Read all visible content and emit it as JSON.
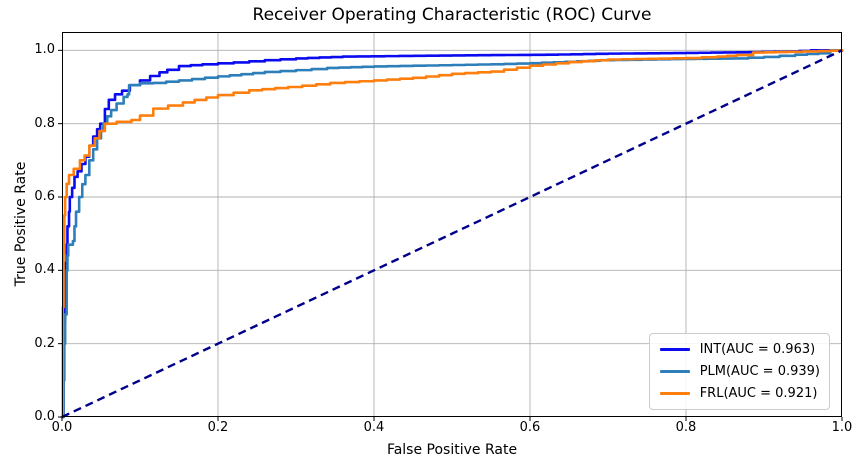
{
  "chart_data": {
    "type": "line",
    "title": "Receiver Operating Characteristic (ROC) Curve",
    "xlabel": "False Positive Rate",
    "ylabel": "True Positive Rate",
    "xlim": [
      0,
      1.0
    ],
    "ylim": [
      0,
      1.05
    ],
    "grid": true,
    "legend_position": "lower-right",
    "x_ticks": [
      {
        "value": 0.0,
        "label": "0.0"
      },
      {
        "value": 0.2,
        "label": "0.2"
      },
      {
        "value": 0.4,
        "label": "0.4"
      },
      {
        "value": 0.6,
        "label": "0.6"
      },
      {
        "value": 0.8,
        "label": "0.8"
      },
      {
        "value": 1.0,
        "label": "1.0"
      }
    ],
    "y_ticks": [
      {
        "value": 0.0,
        "label": "0.0"
      },
      {
        "value": 0.2,
        "label": "0.2"
      },
      {
        "value": 0.4,
        "label": "0.4"
      },
      {
        "value": 0.6,
        "label": "0.6"
      },
      {
        "value": 0.8,
        "label": "0.8"
      },
      {
        "value": 1.0,
        "label": "1.0"
      }
    ],
    "series": [
      {
        "name": "INT",
        "auc": 0.963,
        "label": "INT(AUC = 0.963)",
        "color": "#0b0bf0",
        "points": [
          [
            0.0,
            0.0
          ],
          [
            0.002,
            0.13
          ],
          [
            0.002,
            0.2
          ],
          [
            0.003,
            0.26
          ],
          [
            0.004,
            0.33
          ],
          [
            0.004,
            0.42
          ],
          [
            0.006,
            0.47
          ],
          [
            0.007,
            0.52
          ],
          [
            0.009,
            0.56
          ],
          [
            0.01,
            0.6
          ],
          [
            0.013,
            0.625
          ],
          [
            0.016,
            0.655
          ],
          [
            0.02,
            0.67
          ],
          [
            0.025,
            0.69
          ],
          [
            0.03,
            0.71
          ],
          [
            0.035,
            0.74
          ],
          [
            0.04,
            0.765
          ],
          [
            0.045,
            0.785
          ],
          [
            0.049,
            0.8
          ],
          [
            0.055,
            0.84
          ],
          [
            0.06,
            0.865
          ],
          [
            0.068,
            0.88
          ],
          [
            0.077,
            0.89
          ],
          [
            0.087,
            0.905
          ],
          [
            0.1,
            0.918
          ],
          [
            0.113,
            0.93
          ],
          [
            0.125,
            0.94
          ],
          [
            0.135,
            0.947
          ],
          [
            0.15,
            0.957
          ],
          [
            0.18,
            0.962
          ],
          [
            0.22,
            0.967
          ],
          [
            0.26,
            0.973
          ],
          [
            0.3,
            0.978
          ],
          [
            0.36,
            0.983
          ],
          [
            0.45,
            0.985
          ],
          [
            0.55,
            0.987
          ],
          [
            0.62,
            0.988
          ],
          [
            0.7,
            0.991
          ],
          [
            0.8,
            0.993
          ],
          [
            0.88,
            0.995
          ],
          [
            0.93,
            0.997
          ],
          [
            0.96,
            1.0
          ],
          [
            1.0,
            1.0
          ]
        ]
      },
      {
        "name": "PLM",
        "auc": 0.939,
        "label": "PLM(AUC = 0.939)",
        "color": "#2e7fb9",
        "points": [
          [
            0.0,
            0.0
          ],
          [
            0.002,
            0.1
          ],
          [
            0.003,
            0.2
          ],
          [
            0.004,
            0.28
          ],
          [
            0.006,
            0.4
          ],
          [
            0.007,
            0.44
          ],
          [
            0.008,
            0.47
          ],
          [
            0.014,
            0.48
          ],
          [
            0.016,
            0.52
          ],
          [
            0.018,
            0.56
          ],
          [
            0.022,
            0.6
          ],
          [
            0.026,
            0.635
          ],
          [
            0.03,
            0.66
          ],
          [
            0.035,
            0.7
          ],
          [
            0.04,
            0.73
          ],
          [
            0.045,
            0.76
          ],
          [
            0.05,
            0.78
          ],
          [
            0.053,
            0.8
          ],
          [
            0.058,
            0.82
          ],
          [
            0.063,
            0.837
          ],
          [
            0.07,
            0.855
          ],
          [
            0.079,
            0.873
          ],
          [
            0.084,
            0.88
          ],
          [
            0.086,
            0.905
          ],
          [
            0.1,
            0.91
          ],
          [
            0.117,
            0.911
          ],
          [
            0.15,
            0.918
          ],
          [
            0.2,
            0.929
          ],
          [
            0.26,
            0.941
          ],
          [
            0.3,
            0.946
          ],
          [
            0.34,
            0.952
          ],
          [
            0.4,
            0.956
          ],
          [
            0.45,
            0.958
          ],
          [
            0.5,
            0.96
          ],
          [
            0.55,
            0.962
          ],
          [
            0.6,
            0.965
          ],
          [
            0.66,
            0.97
          ],
          [
            0.69,
            0.973
          ],
          [
            0.78,
            0.976
          ],
          [
            0.86,
            0.978
          ],
          [
            0.9,
            0.982
          ],
          [
            0.94,
            0.988
          ],
          [
            0.97,
            0.992
          ],
          [
            0.985,
            1.0
          ],
          [
            1.0,
            1.0
          ]
        ]
      },
      {
        "name": "FRL",
        "auc": 0.921,
        "label": "FRL(AUC = 0.921)",
        "color": "#ff7f0e",
        "points": [
          [
            0.0,
            0.0
          ],
          [
            0.001,
            0.3
          ],
          [
            0.002,
            0.45
          ],
          [
            0.003,
            0.55
          ],
          [
            0.004,
            0.6
          ],
          [
            0.006,
            0.636
          ],
          [
            0.009,
            0.66
          ],
          [
            0.015,
            0.677
          ],
          [
            0.023,
            0.7
          ],
          [
            0.029,
            0.713
          ],
          [
            0.035,
            0.74
          ],
          [
            0.042,
            0.76
          ],
          [
            0.048,
            0.78
          ],
          [
            0.055,
            0.8
          ],
          [
            0.07,
            0.805
          ],
          [
            0.089,
            0.81
          ],
          [
            0.1,
            0.822
          ],
          [
            0.117,
            0.841
          ],
          [
            0.155,
            0.858
          ],
          [
            0.2,
            0.878
          ],
          [
            0.24,
            0.891
          ],
          [
            0.29,
            0.9
          ],
          [
            0.344,
            0.911
          ],
          [
            0.4,
            0.918
          ],
          [
            0.45,
            0.925
          ],
          [
            0.5,
            0.936
          ],
          [
            0.55,
            0.942
          ],
          [
            0.6,
            0.958
          ],
          [
            0.65,
            0.968
          ],
          [
            0.7,
            0.975
          ],
          [
            0.75,
            0.977
          ],
          [
            0.8,
            0.979
          ],
          [
            0.84,
            0.983
          ],
          [
            0.865,
            0.987
          ],
          [
            0.886,
            0.994
          ],
          [
            0.93,
            0.996
          ],
          [
            0.97,
            0.998
          ],
          [
            1.0,
            1.0
          ]
        ]
      }
    ],
    "reference_line": {
      "name": "chance-diagonal",
      "from": [
        0,
        0
      ],
      "to": [
        1,
        1
      ],
      "color": "#00008b",
      "style": "dashed"
    }
  },
  "colors": {
    "background": "#ffffff",
    "grid": "#b0b0b0",
    "spine": "#000000",
    "text": "#000000"
  }
}
